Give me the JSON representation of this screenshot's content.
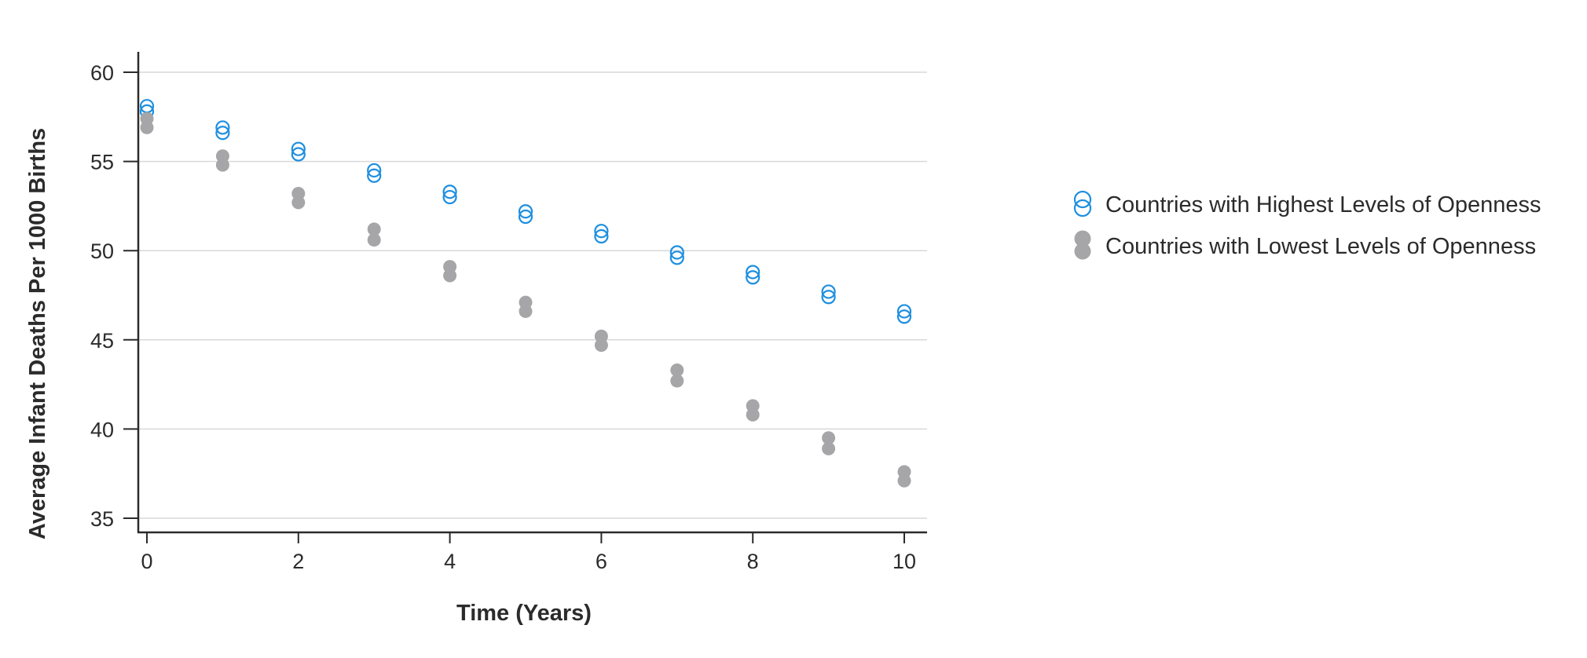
{
  "chart_data": {
    "type": "scatter",
    "xlabel": "Time (Years)",
    "ylabel": "Average Infant Deaths Per 1000 Births",
    "xlim": [
      0,
      10
    ],
    "ylim": [
      35,
      60
    ],
    "x_ticks": [
      "0",
      "2",
      "4",
      "6",
      "8",
      "10"
    ],
    "y_ticks": [
      "35",
      "40",
      "45",
      "50",
      "55",
      "60"
    ],
    "grid": "horizontal",
    "legend_position": "right",
    "series": [
      {
        "name": "Countries with Highest Levels of Openness",
        "marker": "hollow-circle",
        "color": "#1e8fe0",
        "x": [
          0,
          0,
          1,
          1,
          2,
          2,
          3,
          3,
          4,
          4,
          5,
          5,
          6,
          6,
          7,
          7,
          8,
          8,
          9,
          9,
          10,
          10
        ],
        "y": [
          58.1,
          57.8,
          56.9,
          56.6,
          55.7,
          55.4,
          54.5,
          54.2,
          53.3,
          53.0,
          52.2,
          51.9,
          51.1,
          50.8,
          49.9,
          49.6,
          48.8,
          48.5,
          47.7,
          47.4,
          46.6,
          46.3
        ]
      },
      {
        "name": "Countries with Lowest Levels of Openness",
        "marker": "filled-circle",
        "color": "#a6a6a8",
        "x": [
          0,
          0,
          1,
          1,
          2,
          2,
          3,
          3,
          4,
          4,
          5,
          5,
          6,
          6,
          7,
          7,
          8,
          8,
          9,
          9,
          10,
          10
        ],
        "y": [
          57.4,
          56.9,
          55.3,
          54.8,
          53.2,
          52.7,
          51.2,
          50.6,
          49.1,
          48.6,
          47.1,
          46.6,
          45.2,
          44.7,
          43.3,
          42.7,
          41.3,
          40.8,
          39.5,
          38.9,
          37.6,
          37.1
        ]
      }
    ]
  },
  "colors": {
    "axis": "#2b2b2b",
    "grid": "#d9d9d9",
    "high_openness": "#1e8fe0",
    "low_openness": "#a6a6a8"
  }
}
